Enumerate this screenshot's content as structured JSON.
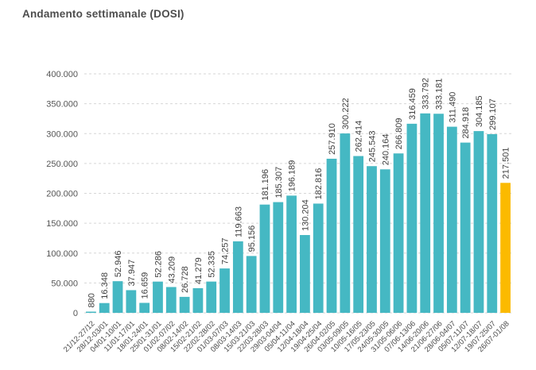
{
  "chart_data": {
    "type": "bar",
    "title": "Andamento settimanale (DOSI)",
    "xlabel": "",
    "ylabel": "",
    "ylim": [
      0,
      400000
    ],
    "ytick_step": 50000,
    "ytick_labels": [
      "0",
      "50.000",
      "100.000",
      "150.000",
      "200.000",
      "250.000",
      "300.000",
      "350.000",
      "400.000"
    ],
    "grid": "horizontal-dashed",
    "legend": "none",
    "categories": [
      "21/12-27/12",
      "28/12-03/01",
      "04/01-10/01",
      "11/01-17/01",
      "18/01-24/01",
      "25/01-31/01",
      "01/02-07/02",
      "08/02-14/02",
      "15/02-21/02",
      "22/02-28/02",
      "01/03-07/03",
      "08/03-14/03",
      "15/03-21/03",
      "22/03-28/03",
      "29/03-04/04",
      "05/04-11/04",
      "12/04-18/04",
      "19/04-25/04",
      "26/04-02/05",
      "03/05-09/05",
      "10/05-16/05",
      "17/05-23/05",
      "24/05-30/05",
      "31/05-06/06",
      "07/06-13/06",
      "14/06-20/06",
      "21/06-27/06",
      "28/06-04/07",
      "05/07-11/07",
      "12/07-18/07",
      "19/07-25/07",
      "26/07-01/08"
    ],
    "values": [
      880,
      16348,
      52946,
      37947,
      16659,
      52286,
      43209,
      26728,
      41279,
      52335,
      74257,
      119663,
      95156,
      181196,
      185307,
      196189,
      130204,
      182816,
      257910,
      300222,
      262414,
      245543,
      240164,
      266809,
      316459,
      333792,
      333181,
      311490,
      284918,
      304185,
      299107,
      217501
    ],
    "value_labels": [
      "880",
      "16.348",
      "52.946",
      "37.947",
      "16.659",
      "52.286",
      "43.209",
      "26.728",
      "41.279",
      "52.335",
      "74.257",
      "119.663",
      "95.156",
      "181.196",
      "185.307",
      "196.189",
      "130.204",
      "182.816",
      "257.910",
      "300.222",
      "262.414",
      "245.543",
      "240.164",
      "266.809",
      "316.459",
      "333.792",
      "333.181",
      "311.490",
      "284.918",
      "304.185",
      "299.107",
      "217.501"
    ],
    "highlight_last_bar": true
  },
  "colors": {
    "bar": "#45b8c3",
    "highlight_bar": "#fbba00",
    "gridline": "#d6d6d6",
    "title_text": "#4d4d4d",
    "ytick_text": "#555555",
    "xtick_text": "#4a4a4a",
    "value_text": "#3f3f3f",
    "background": "#ffffff"
  }
}
